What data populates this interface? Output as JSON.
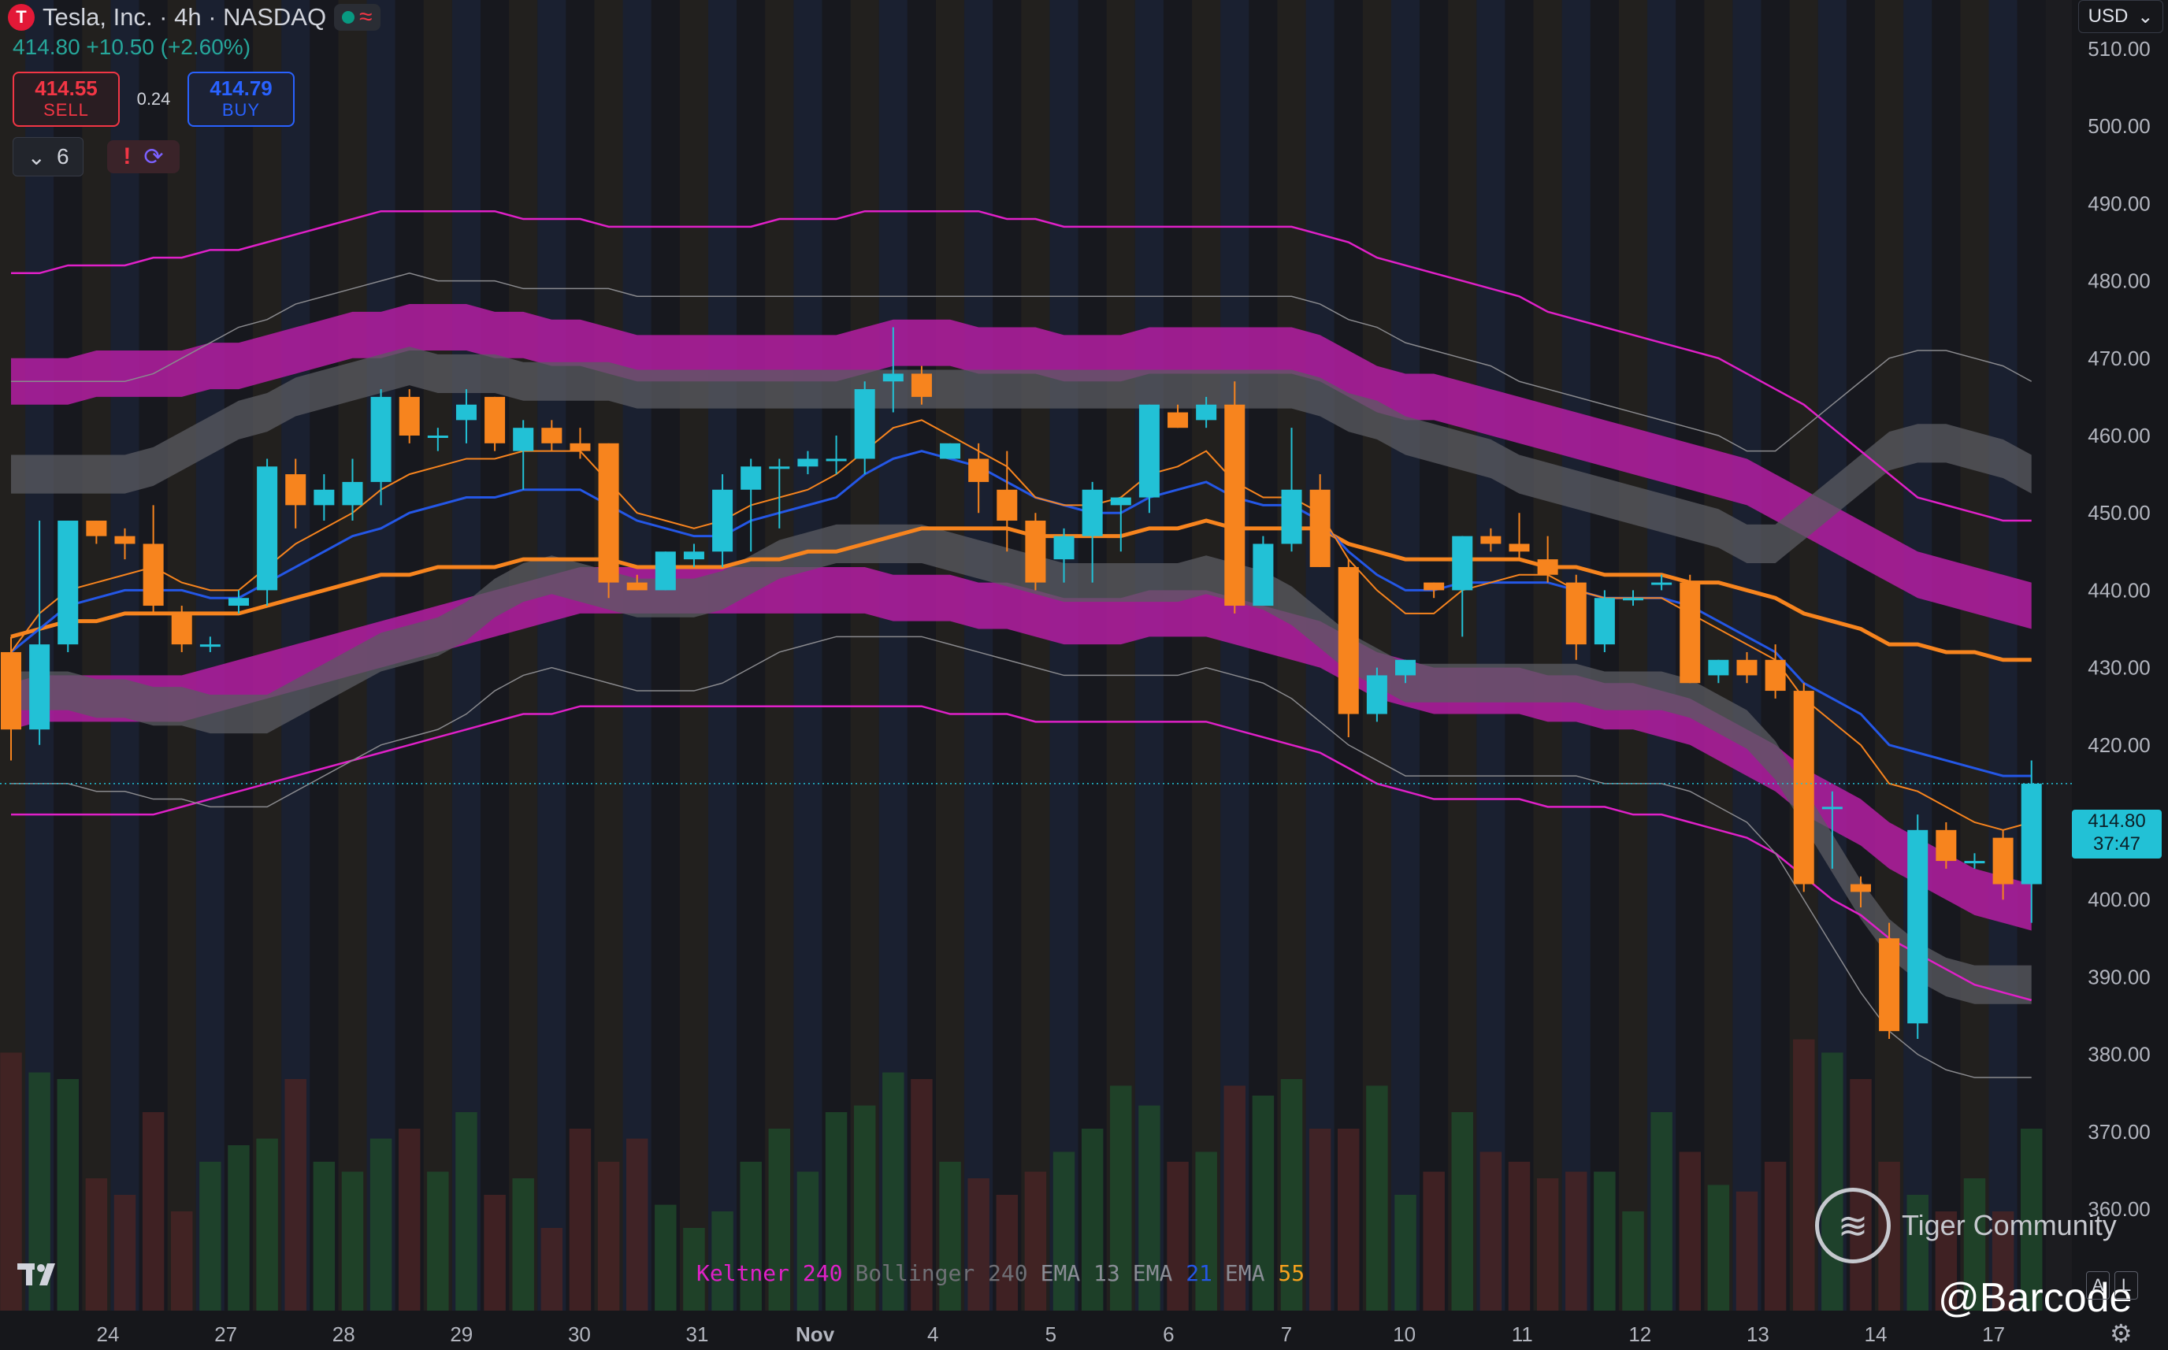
{
  "header": {
    "logo_letter": "T",
    "title": "Tesla, Inc. · 4h · NASDAQ",
    "quote": "414.80  +10.50 (+2.60%)",
    "sell_price": "414.55",
    "sell_label": "SELL",
    "spread": "0.24",
    "buy_price": "414.79",
    "buy_label": "BUY",
    "indicator_count": "6",
    "currency": "USD"
  },
  "legend": {
    "keltner_label": "Keltner",
    "keltner_len": "240",
    "bollinger_label": "Bollinger",
    "bollinger_len": "240",
    "ema1_label": "EMA",
    "ema1_len": "13",
    "ema2_label": "EMA",
    "ema2_len": "21",
    "ema3_label": "EMA",
    "ema3_len": "55"
  },
  "last_price": {
    "price": "414.80",
    "countdown": "37:47"
  },
  "watermark": {
    "brand": "Tiger Community",
    "handle": "@Barcode"
  },
  "colors": {
    "up": "#22c1d6",
    "down": "#f7841e",
    "keltner": "#e020c8",
    "bollinger": "#8a8a8e",
    "ema13": "#f7841e",
    "ema21": "#2457e6",
    "ema55": "#f7841e",
    "background": "#1c1c20"
  },
  "chart_data": {
    "type": "candlestick",
    "y_ticks": [
      360,
      370,
      380,
      390,
      400,
      410,
      420,
      430,
      440,
      450,
      460,
      470,
      480,
      490,
      500,
      510
    ],
    "ylim": [
      357,
      521
    ],
    "x_labels": [
      "24",
      "27",
      "28",
      "29",
      "30",
      "31",
      "Nov",
      "4",
      "5",
      "6",
      "7",
      "10",
      "11",
      "12",
      "13",
      "14",
      "17"
    ],
    "candles": [
      [
        432,
        434,
        418,
        422
      ],
      [
        422,
        449,
        420,
        433
      ],
      [
        433,
        449,
        432,
        449
      ],
      [
        449,
        449,
        446,
        447
      ],
      [
        447,
        448,
        444,
        446
      ],
      [
        446,
        451,
        437,
        438
      ],
      [
        437,
        438,
        432,
        433
      ],
      [
        433,
        434,
        432,
        433
      ],
      [
        438,
        440,
        437,
        439
      ],
      [
        440,
        457,
        438,
        456
      ],
      [
        455,
        457,
        448,
        451
      ],
      [
        451,
        455,
        449,
        453
      ],
      [
        451,
        457,
        449,
        454
      ],
      [
        454,
        466,
        451,
        465
      ],
      [
        465,
        466,
        459,
        460
      ],
      [
        460,
        461,
        458,
        460
      ],
      [
        462,
        466,
        459,
        464
      ],
      [
        465,
        465,
        458,
        459
      ],
      [
        458,
        462,
        453,
        461
      ],
      [
        461,
        462,
        458,
        459
      ],
      [
        459,
        461,
        457,
        458
      ],
      [
        459,
        459,
        439,
        441
      ],
      [
        441,
        442,
        440,
        440
      ],
      [
        440,
        445,
        440,
        445
      ],
      [
        444,
        446,
        443,
        445
      ],
      [
        445,
        455,
        443,
        453
      ],
      [
        453,
        457,
        445,
        456
      ],
      [
        456,
        457,
        448,
        456
      ],
      [
        456,
        458,
        455,
        457
      ],
      [
        457,
        460,
        455,
        457
      ],
      [
        457,
        467,
        455,
        466
      ],
      [
        467,
        474,
        463,
        468
      ],
      [
        468,
        469,
        464,
        465
      ],
      [
        457,
        459,
        457,
        459
      ],
      [
        457,
        459,
        450,
        454
      ],
      [
        453,
        458,
        445,
        449
      ],
      [
        449,
        450,
        440,
        441
      ],
      [
        444,
        448,
        441,
        447
      ],
      [
        447,
        454,
        441,
        453
      ],
      [
        451,
        452,
        445,
        452
      ],
      [
        452,
        464,
        450,
        464
      ],
      [
        463,
        464,
        461,
        461
      ],
      [
        462,
        465,
        461,
        464
      ],
      [
        464,
        467,
        437,
        438
      ],
      [
        438,
        447,
        438,
        446
      ],
      [
        446,
        461,
        445,
        453
      ],
      [
        453,
        455,
        443,
        443
      ],
      [
        443,
        444,
        421,
        424
      ],
      [
        424,
        430,
        423,
        429
      ],
      [
        429,
        431,
        428,
        431
      ],
      [
        441,
        441,
        439,
        440
      ],
      [
        440,
        447,
        434,
        447
      ],
      [
        447,
        448,
        445,
        446
      ],
      [
        446,
        450,
        444,
        445
      ],
      [
        444,
        447,
        441,
        442
      ],
      [
        441,
        442,
        431,
        433
      ],
      [
        433,
        440,
        432,
        439
      ],
      [
        439,
        440,
        438,
        439
      ],
      [
        441,
        442,
        440,
        441
      ],
      [
        441,
        442,
        428,
        428
      ],
      [
        429,
        431,
        428,
        431
      ],
      [
        431,
        432,
        428,
        429
      ],
      [
        431,
        433,
        426,
        427
      ],
      [
        427,
        428,
        401,
        402
      ],
      [
        412,
        414,
        404,
        412
      ],
      [
        402,
        403,
        399,
        401
      ],
      [
        395,
        397,
        382,
        383
      ],
      [
        384,
        411,
        382,
        409
      ],
      [
        409,
        410,
        404,
        405
      ],
      [
        405,
        406,
        404,
        405
      ],
      [
        408,
        409,
        400,
        402
      ],
      [
        402,
        418,
        397,
        415
      ]
    ],
    "volume_scale_note": "relative volume bars at bottom, max = 100",
    "volume": [
      78,
      72,
      70,
      40,
      35,
      60,
      30,
      45,
      50,
      52,
      70,
      45,
      42,
      52,
      55,
      42,
      60,
      35,
      40,
      25,
      55,
      45,
      52,
      32,
      25,
      30,
      45,
      55,
      42,
      60,
      62,
      72,
      70,
      45,
      40,
      35,
      42,
      48,
      55,
      68,
      62,
      45,
      48,
      68,
      65,
      70,
      55,
      55,
      68,
      35,
      42,
      60,
      48,
      45,
      40,
      42,
      42,
      30,
      60,
      48,
      38,
      36,
      45,
      82,
      78,
      70,
      45,
      35,
      30,
      40,
      30,
      55
    ],
    "ema13": [
      432,
      437,
      440,
      441,
      442,
      443,
      441,
      440,
      440,
      443,
      446,
      448,
      450,
      453,
      455,
      456,
      457,
      457,
      458,
      458,
      458,
      454,
      450,
      449,
      448,
      449,
      451,
      452,
      453,
      455,
      458,
      461,
      462,
      460,
      458,
      456,
      452,
      451,
      451,
      452,
      455,
      456,
      458,
      454,
      452,
      452,
      450,
      444,
      440,
      437,
      437,
      440,
      441,
      442,
      442,
      440,
      439,
      439,
      439,
      437,
      435,
      433,
      431,
      426,
      423,
      420,
      415,
      414,
      412,
      410,
      409,
      410
    ],
    "ema21": [
      432,
      435,
      438,
      439,
      440,
      440,
      440,
      439,
      439,
      441,
      443,
      445,
      447,
      448,
      450,
      451,
      452,
      452,
      453,
      453,
      453,
      451,
      449,
      448,
      447,
      447,
      449,
      450,
      451,
      452,
      455,
      457,
      458,
      457,
      456,
      454,
      452,
      451,
      450,
      450,
      452,
      453,
      454,
      452,
      451,
      451,
      449,
      445,
      442,
      440,
      440,
      441,
      441,
      441,
      441,
      440,
      439,
      439,
      439,
      438,
      436,
      434,
      432,
      428,
      426,
      424,
      420,
      419,
      418,
      417,
      416,
      416
    ],
    "ema55": [
      434,
      435,
      436,
      436,
      437,
      437,
      437,
      437,
      437,
      438,
      439,
      440,
      441,
      442,
      442,
      443,
      443,
      443,
      444,
      444,
      444,
      444,
      443,
      443,
      443,
      443,
      444,
      444,
      445,
      445,
      446,
      447,
      448,
      448,
      448,
      448,
      447,
      447,
      447,
      447,
      448,
      448,
      449,
      448,
      448,
      448,
      448,
      446,
      445,
      444,
      444,
      444,
      444,
      444,
      443,
      443,
      442,
      442,
      442,
      441,
      441,
      440,
      439,
      437,
      436,
      435,
      433,
      433,
      432,
      432,
      431,
      431
    ],
    "keltner_upper": [
      467,
      467,
      467,
      468,
      468,
      468,
      468,
      469,
      469,
      470,
      471,
      472,
      473,
      473,
      474,
      474,
      474,
      473,
      473,
      472,
      472,
      471,
      470,
      470,
      470,
      470,
      470,
      470,
      470,
      470,
      471,
      472,
      472,
      472,
      471,
      471,
      471,
      470,
      470,
      470,
      471,
      471,
      471,
      471,
      471,
      471,
      470,
      468,
      466,
      465,
      465,
      464,
      463,
      462,
      461,
      460,
      459,
      458,
      457,
      456,
      455,
      454,
      452,
      450,
      448,
      446,
      444,
      442,
      441,
      440,
      439,
      438
    ],
    "keltner_lower": [
      425,
      426,
      426,
      426,
      426,
      426,
      426,
      427,
      428,
      429,
      430,
      431,
      432,
      433,
      434,
      435,
      436,
      437,
      438,
      439,
      440,
      440,
      440,
      440,
      440,
      440,
      440,
      440,
      440,
      440,
      440,
      439,
      439,
      439,
      438,
      438,
      437,
      436,
      436,
      436,
      437,
      437,
      437,
      436,
      435,
      434,
      433,
      431,
      429,
      428,
      427,
      427,
      427,
      427,
      426,
      426,
      425,
      425,
      424,
      423,
      421,
      419,
      417,
      414,
      412,
      410,
      407,
      405,
      403,
      401,
      400,
      399
    ],
    "keltner_outer_upper": [
      481,
      481,
      482,
      482,
      482,
      483,
      483,
      484,
      484,
      485,
      486,
      487,
      488,
      489,
      489,
      489,
      489,
      489,
      488,
      488,
      488,
      487,
      487,
      487,
      487,
      487,
      487,
      488,
      488,
      488,
      489,
      489,
      489,
      489,
      489,
      488,
      488,
      487,
      487,
      487,
      487,
      487,
      487,
      487,
      487,
      487,
      486,
      485,
      483,
      482,
      481,
      480,
      479,
      478,
      476,
      475,
      474,
      473,
      472,
      471,
      470,
      468,
      466,
      464,
      461,
      458,
      455,
      452,
      451,
      450,
      449,
      449
    ],
    "keltner_outer_lower": [
      411,
      411,
      411,
      411,
      411,
      411,
      412,
      413,
      414,
      415,
      416,
      417,
      418,
      419,
      420,
      421,
      422,
      423,
      424,
      424,
      425,
      425,
      425,
      425,
      425,
      425,
      425,
      425,
      425,
      425,
      425,
      425,
      425,
      424,
      424,
      424,
      423,
      423,
      423,
      423,
      423,
      423,
      423,
      422,
      421,
      420,
      419,
      417,
      415,
      414,
      413,
      413,
      413,
      413,
      412,
      412,
      412,
      411,
      411,
      410,
      409,
      408,
      406,
      403,
      400,
      398,
      395,
      393,
      391,
      389,
      388,
      387
    ],
    "bollinger_upper": [
      455,
      455,
      455,
      455,
      455,
      456,
      458,
      460,
      462,
      463,
      465,
      466,
      467,
      468,
      469,
      468,
      468,
      468,
      467,
      467,
      467,
      467,
      466,
      466,
      466,
      466,
      466,
      466,
      466,
      466,
      466,
      466,
      466,
      466,
      466,
      466,
      466,
      466,
      466,
      466,
      466,
      466,
      466,
      466,
      466,
      466,
      465,
      463,
      462,
      460,
      459,
      458,
      457,
      455,
      454,
      453,
      452,
      451,
      450,
      449,
      448,
      446,
      446,
      449,
      452,
      455,
      458,
      459,
      459,
      458,
      457,
      455
    ],
    "bollinger_lower": [
      427,
      427,
      427,
      426,
      426,
      425,
      425,
      424,
      424,
      424,
      426,
      428,
      430,
      432,
      433,
      434,
      436,
      439,
      441,
      442,
      441,
      440,
      439,
      439,
      439,
      440,
      442,
      444,
      445,
      446,
      446,
      446,
      446,
      445,
      444,
      443,
      442,
      441,
      441,
      441,
      441,
      441,
      442,
      441,
      440,
      438,
      435,
      432,
      430,
      428,
      428,
      428,
      428,
      428,
      428,
      428,
      427,
      427,
      427,
      426,
      424,
      422,
      418,
      412,
      406,
      400,
      395,
      392,
      390,
      389,
      389,
      389
    ]
  }
}
